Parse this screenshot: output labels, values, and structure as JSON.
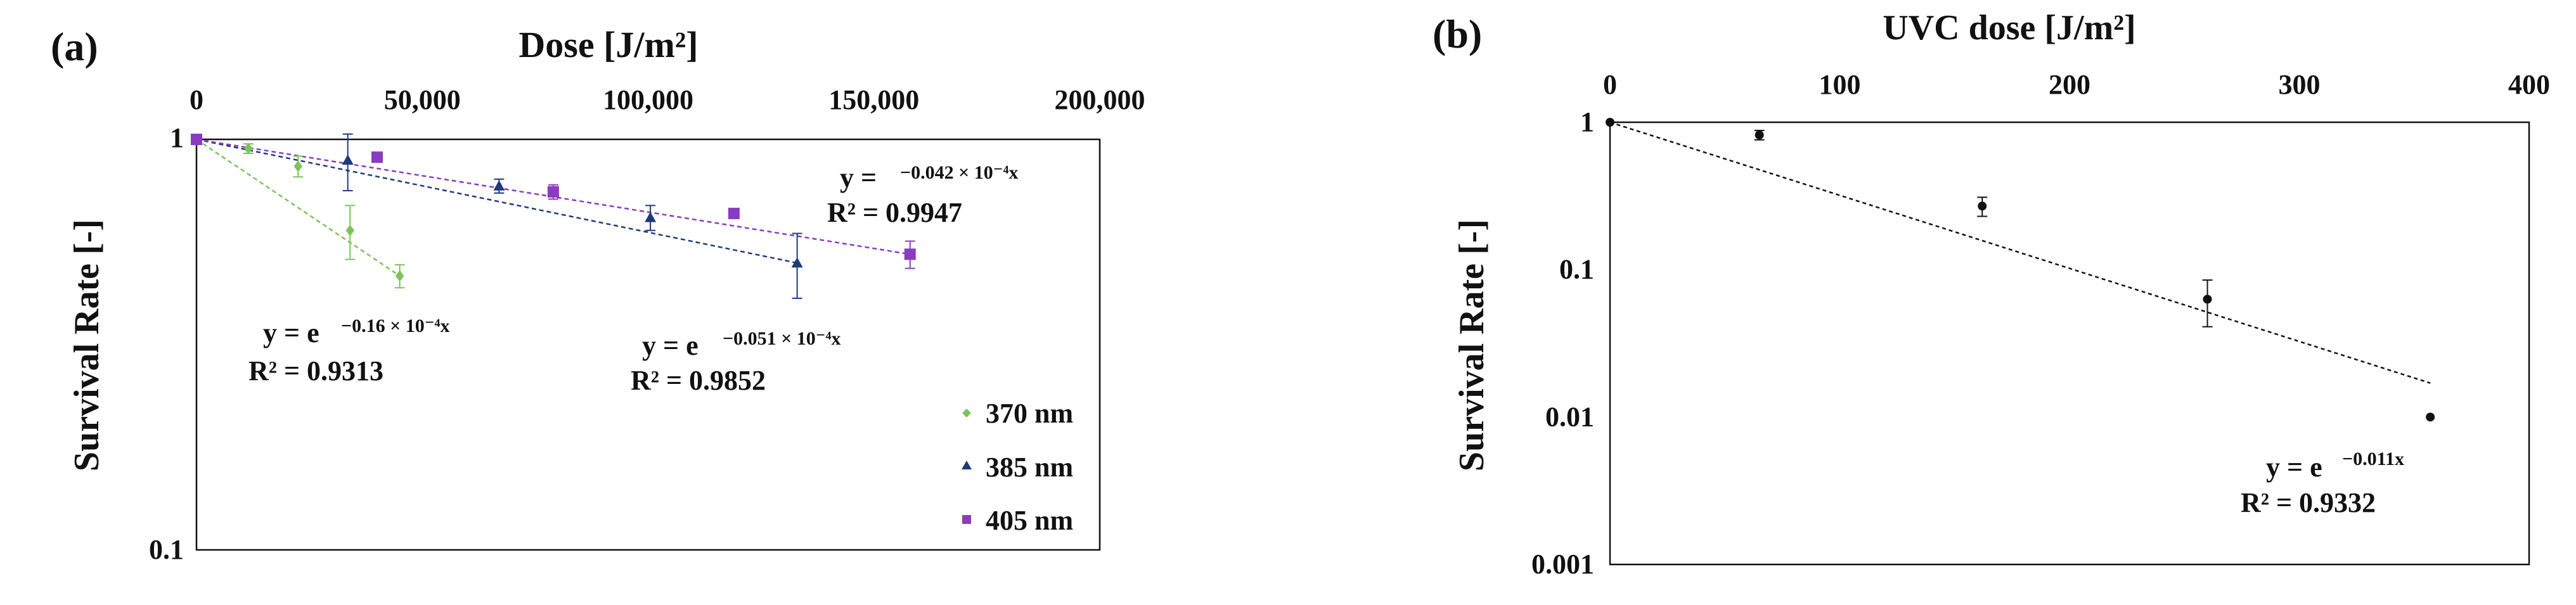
{
  "chart_data": [
    {
      "panel": "(a)",
      "type": "scatter",
      "xlabel": "Dose [J/m²]",
      "ylabel": "Survival Rate [-]",
      "x_axis_position": "top",
      "xlim": [
        0,
        200000
      ],
      "ylim": [
        0.1,
        1
      ],
      "yscale": "log",
      "xticks": [
        0,
        50000,
        100000,
        150000,
        200000
      ],
      "xtick_labels": [
        "0",
        "50,000",
        "100,000",
        "150,000",
        "200,000"
      ],
      "ytick_labels": [
        "1",
        "0.1"
      ],
      "grid": false,
      "legend_position": "bottom-right",
      "series": [
        {
          "name": "370 nm",
          "color": "#7cc35b",
          "marker": "diamond",
          "points": [
            {
              "x": 0,
              "y": 1.0,
              "err": 0
            },
            {
              "x": 11500,
              "y": 0.95,
              "err": 0.025
            },
            {
              "x": 22500,
              "y": 0.86,
              "err": 0.05
            },
            {
              "x": 34000,
              "y": 0.6,
              "err": 0.09
            },
            {
              "x": 45000,
              "y": 0.465,
              "err": 0.03
            }
          ],
          "fit": {
            "x_end": 45000,
            "equation": "y = e",
            "exponent": "−0.16 × 10⁻⁴x",
            "r2": "R² = 0.9313"
          }
        },
        {
          "name": "385 nm",
          "color": "#1f3a7a",
          "marker": "triangle",
          "points": [
            {
              "x": 0,
              "y": 1.0,
              "err": 0
            },
            {
              "x": 33500,
              "y": 0.89,
              "err": 0.14
            },
            {
              "x": 67000,
              "y": 0.77,
              "err": 0.03
            },
            {
              "x": 100500,
              "y": 0.645,
              "err": 0.045
            },
            {
              "x": 133000,
              "y": 0.5,
              "err": 0.09
            }
          ],
          "fit": {
            "x_end": 133000,
            "equation": "y = e",
            "exponent": "−0.051 × 10⁻⁴x",
            "r2": "R² = 0.9852"
          }
        },
        {
          "name": "405 nm",
          "color": "#8a3bbf",
          "marker": "square",
          "points": [
            {
              "x": 0,
              "y": 1.0,
              "err": 0
            },
            {
              "x": 40000,
              "y": 0.905,
              "err": 0.015
            },
            {
              "x": 79000,
              "y": 0.745,
              "err": 0.03
            },
            {
              "x": 119000,
              "y": 0.66,
              "err": 0.01
            },
            {
              "x": 158000,
              "y": 0.525,
              "err": 0.04
            }
          ],
          "fit": {
            "x_end": 158000,
            "equation": "y =",
            "exponent": "−0.042 × 10⁻⁴x",
            "r2": "R² = 0.9947"
          }
        }
      ]
    },
    {
      "panel": "(b)",
      "type": "scatter",
      "xlabel": "UVC dose [J/m²]",
      "ylabel": "Survival Rate [-]",
      "x_axis_position": "top",
      "xlim": [
        0,
        400
      ],
      "ylim": [
        0.001,
        1
      ],
      "yscale": "log",
      "xticks": [
        0,
        100,
        200,
        300,
        400
      ],
      "xtick_labels": [
        "0",
        "100",
        "200",
        "300",
        "400"
      ],
      "yticks": [
        1,
        0.1,
        0.01,
        0.001
      ],
      "ytick_labels": [
        "1",
        "0.1",
        "0.01",
        "0.001"
      ],
      "grid": false,
      "series": [
        {
          "color": "#111111",
          "marker": "circle",
          "points": [
            {
              "x": 0,
              "y": 1.0,
              "err": 0
            },
            {
              "x": 65,
              "y": 0.82,
              "err": 0.06
            },
            {
              "x": 162,
              "y": 0.27,
              "err": 0.04
            },
            {
              "x": 260,
              "y": 0.063,
              "err": 0.022
            },
            {
              "x": 357,
              "y": 0.01,
              "err": 0
            }
          ],
          "fit": {
            "x_end": 357,
            "y_end": 0.017,
            "equation": "y = e",
            "exponent": "−0.011x",
            "r2": "R² = 0.9332"
          }
        }
      ]
    }
  ]
}
